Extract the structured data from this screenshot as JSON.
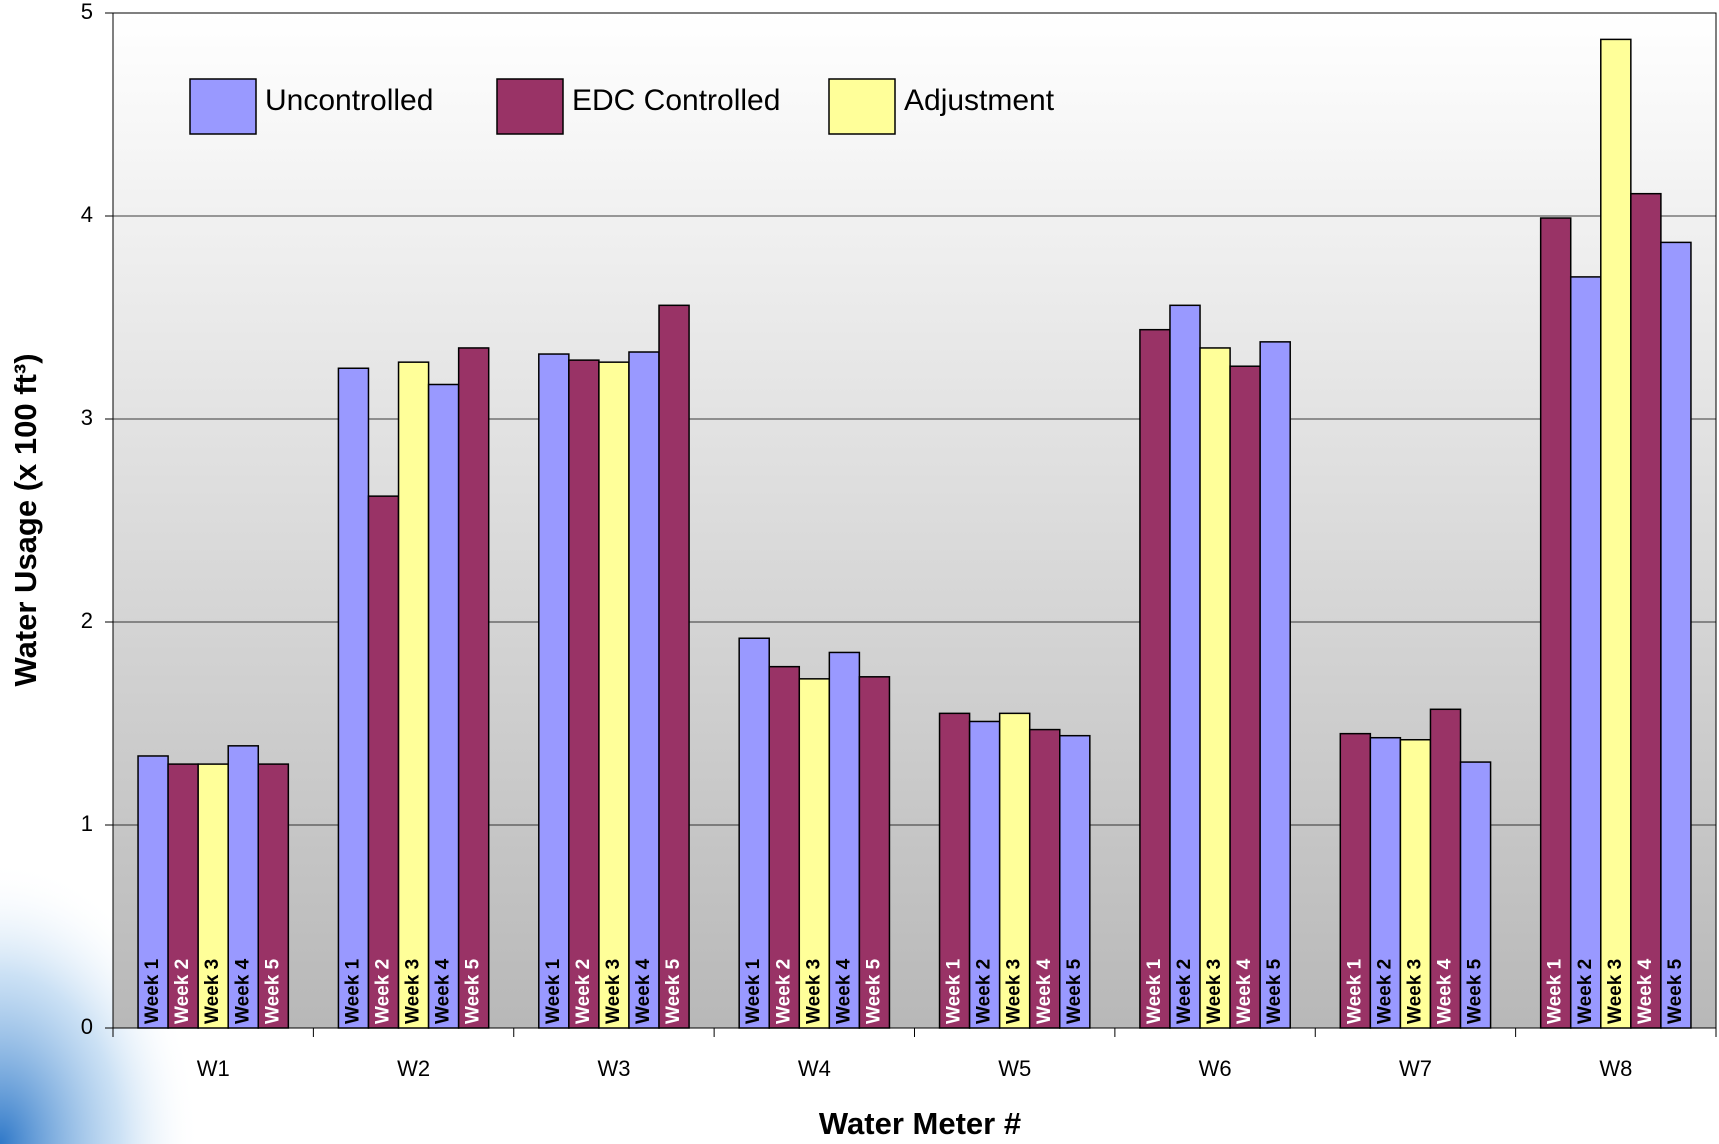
{
  "chart_data": {
    "type": "bar",
    "x_label": "Water Meter #",
    "y_label": "Water Usage (x 100 ft³)",
    "categories": [
      "W1",
      "W2",
      "W3",
      "W4",
      "W5",
      "W6",
      "W7",
      "W8"
    ],
    "legend": [
      {
        "name": "Uncontrolled",
        "color": "#9999ff"
      },
      {
        "name": "EDC Controlled",
        "color": "#993366"
      },
      {
        "name": "Adjustment",
        "color": "#ffff99"
      }
    ],
    "series": [
      {
        "name": "Week 1",
        "values": [
          1.34,
          3.25,
          3.32,
          1.92,
          1.55,
          3.44,
          1.45,
          3.99
        ],
        "colors": [
          "#9999ff",
          "#9999ff",
          "#9999ff",
          "#9999ff",
          "#993366",
          "#993366",
          "#993366",
          "#993366"
        ]
      },
      {
        "name": "Week 2",
        "values": [
          1.3,
          2.62,
          3.29,
          1.78,
          1.51,
          3.56,
          1.43,
          3.7
        ],
        "colors": [
          "#993366",
          "#993366",
          "#993366",
          "#993366",
          "#9999ff",
          "#9999ff",
          "#9999ff",
          "#9999ff"
        ]
      },
      {
        "name": "Week 3",
        "values": [
          1.3,
          3.28,
          3.28,
          1.72,
          1.55,
          3.35,
          1.42,
          4.87
        ],
        "colors": [
          "#ffff99",
          "#ffff99",
          "#ffff99",
          "#ffff99",
          "#ffff99",
          "#ffff99",
          "#ffff99",
          "#ffff99"
        ]
      },
      {
        "name": "Week 4",
        "values": [
          1.39,
          3.17,
          3.33,
          1.85,
          1.47,
          3.26,
          1.57,
          4.11
        ],
        "colors": [
          "#9999ff",
          "#9999ff",
          "#9999ff",
          "#9999ff",
          "#993366",
          "#993366",
          "#993366",
          "#993366"
        ]
      },
      {
        "name": "Week 5",
        "values": [
          1.3,
          3.35,
          3.56,
          1.73,
          1.44,
          3.38,
          1.31,
          3.87
        ],
        "colors": [
          "#993366",
          "#993366",
          "#993366",
          "#993366",
          "#9999ff",
          "#9999ff",
          "#9999ff",
          "#9999ff"
        ]
      }
    ],
    "ylim": [
      0,
      5
    ],
    "yticks": [
      0,
      1,
      2,
      3,
      4,
      5
    ],
    "grid": true
  }
}
